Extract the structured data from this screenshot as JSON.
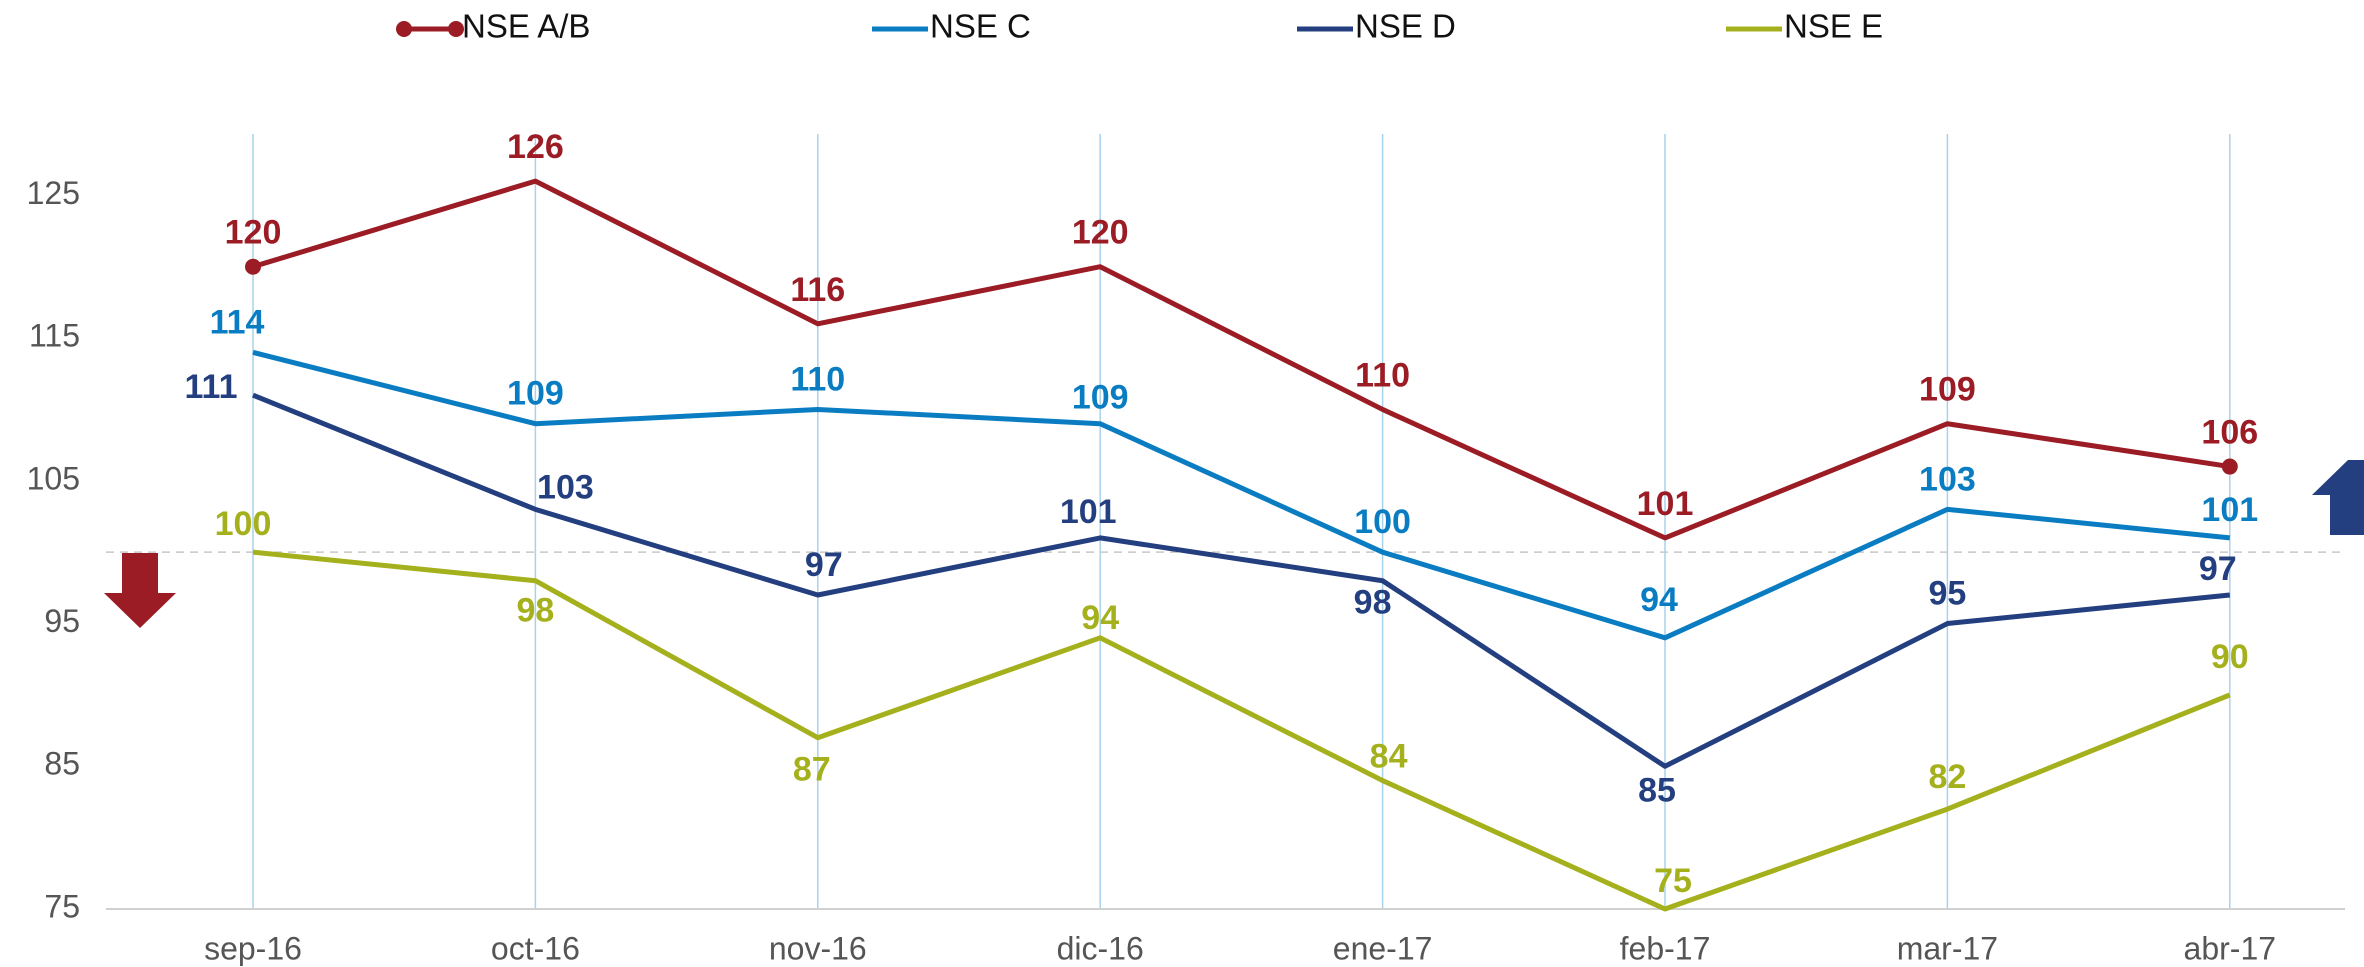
{
  "chart_data": {
    "type": "line",
    "categories": [
      "sep-16",
      "oct-16",
      "nov-16",
      "dic-16",
      "ene-17",
      "feb-17",
      "mar-17",
      "abr-17"
    ],
    "series": [
      {
        "name": "NSE A/B",
        "color": "#9b1c24",
        "values": [
          120,
          126,
          116,
          120,
          110,
          101,
          109,
          106
        ]
      },
      {
        "name": "NSE C",
        "color": "#0a7dc2",
        "values": [
          114,
          109,
          110,
          109,
          100,
          94,
          103,
          101
        ]
      },
      {
        "name": "NSE D",
        "color": "#243f7f",
        "values": [
          111,
          103,
          97,
          101,
          98,
          85,
          95,
          97
        ]
      },
      {
        "name": "NSE E",
        "color": "#a4b01c",
        "values": [
          100,
          98,
          87,
          94,
          84,
          75,
          82,
          90
        ]
      }
    ],
    "ylim": [
      75,
      130
    ],
    "yticks": [
      75,
      85,
      95,
      105,
      115,
      125
    ],
    "reference_line": 100,
    "grid": true
  }
}
